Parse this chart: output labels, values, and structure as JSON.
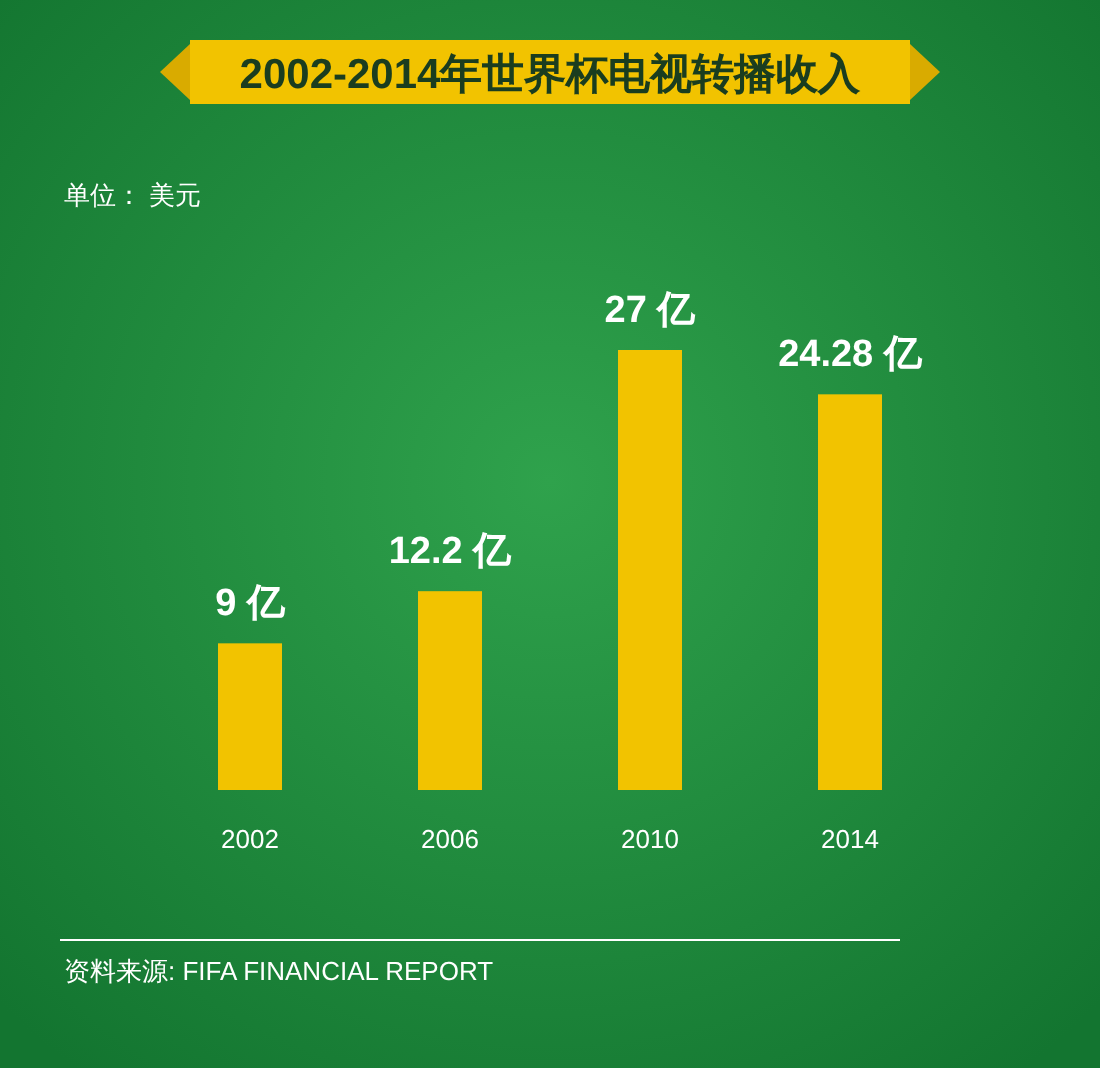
{
  "chart_data": {
    "type": "bar",
    "title": "2002-2014年世界杯电视转播收入",
    "subtitle": "单位：  美元",
    "categories": [
      "2002",
      "2006",
      "2010",
      "2014"
    ],
    "values": [
      9,
      12.2,
      27,
      24.28
    ],
    "value_labels": [
      "9 亿",
      "12.2 亿",
      "27 亿",
      "24.28 亿"
    ],
    "color": "#f2c300",
    "annotations": [
      "资料来源: FIFA FINANCIAL REPORT"
    ]
  }
}
